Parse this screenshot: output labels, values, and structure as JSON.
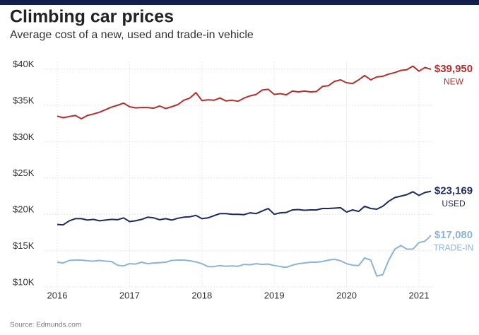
{
  "chart_data": {
    "type": "line",
    "title": "Climbing car prices",
    "subtitle": "Average cost of a new, used and trade-in vehicle",
    "source": "Source: Edmunds.com",
    "x": [
      2016,
      2016.083,
      2016.167,
      2016.25,
      2016.333,
      2016.417,
      2016.5,
      2016.583,
      2016.667,
      2016.75,
      2016.833,
      2016.917,
      2017,
      2017.083,
      2017.167,
      2017.25,
      2017.333,
      2017.417,
      2017.5,
      2017.583,
      2017.667,
      2017.75,
      2017.833,
      2017.917,
      2018,
      2018.083,
      2018.167,
      2018.25,
      2018.333,
      2018.417,
      2018.5,
      2018.583,
      2018.667,
      2018.75,
      2018.833,
      2018.917,
      2019,
      2019.083,
      2019.167,
      2019.25,
      2019.333,
      2019.417,
      2019.5,
      2019.583,
      2019.667,
      2019.75,
      2019.833,
      2019.917,
      2020,
      2020.083,
      2020.167,
      2020.25,
      2020.333,
      2020.417,
      2020.5,
      2020.583,
      2020.667,
      2020.75,
      2020.833,
      2020.917,
      2021,
      2021.083,
      2021.167
    ],
    "series": [
      {
        "name": "NEW",
        "color": "#b22f2f",
        "end_label": "$39,950",
        "values": [
          33500,
          33300,
          33450,
          33600,
          33150,
          33600,
          33800,
          34050,
          34400,
          34750,
          35000,
          35300,
          34800,
          34650,
          34700,
          34700,
          34600,
          34900,
          34550,
          34800,
          35100,
          35700,
          36000,
          36750,
          35650,
          35750,
          35700,
          36000,
          35600,
          35700,
          35550,
          36000,
          36300,
          36500,
          37100,
          37200,
          36500,
          36600,
          36450,
          36950,
          36850,
          36950,
          36850,
          36900,
          37600,
          37700,
          38300,
          38500,
          38100,
          38000,
          38500,
          39100,
          38500,
          38900,
          39000,
          39300,
          39500,
          39800,
          39900,
          40400,
          39700,
          40200,
          39950
        ]
      },
      {
        "name": "USED",
        "color": "#1c2b5a",
        "end_label": "$23,169",
        "values": [
          18600,
          18550,
          19100,
          19400,
          19400,
          19200,
          19300,
          19100,
          19200,
          19300,
          19250,
          19500,
          19000,
          19100,
          19300,
          19600,
          19500,
          19250,
          19400,
          19200,
          19450,
          19600,
          19650,
          19850,
          19400,
          19500,
          19800,
          20100,
          20100,
          20000,
          20000,
          19950,
          20200,
          20100,
          20450,
          20800,
          20000,
          20200,
          20250,
          20600,
          20650,
          20550,
          20600,
          20600,
          20800,
          20800,
          20850,
          20900,
          20300,
          20600,
          20400,
          21100,
          20800,
          20700,
          21100,
          21800,
          22300,
          22500,
          22700,
          23100,
          22600,
          23000,
          23169
        ]
      },
      {
        "name": "TRADE-IN",
        "color": "#8db3d6",
        "end_label": "$17,080",
        "values": [
          13400,
          13300,
          13650,
          13700,
          13700,
          13600,
          13550,
          13650,
          13550,
          13500,
          13000,
          12900,
          13200,
          13150,
          13400,
          13200,
          13300,
          13350,
          13400,
          13650,
          13700,
          13700,
          13600,
          13450,
          13200,
          12800,
          12800,
          12950,
          12850,
          12900,
          12850,
          13100,
          13050,
          13200,
          13100,
          13150,
          12950,
          12800,
          12700,
          13000,
          13200,
          13300,
          13400,
          13400,
          13500,
          13700,
          13800,
          13600,
          13200,
          13000,
          12950,
          14000,
          13700,
          11500,
          11700,
          13700,
          15200,
          15700,
          15200,
          15200,
          16100,
          16300,
          17080
        ]
      }
    ],
    "xlim": [
      2015.8,
      2021.3
    ],
    "xticks": [
      2016,
      2017,
      2018,
      2019,
      2020,
      2021
    ],
    "ylim": [
      10000,
      41000
    ],
    "yticks": [
      {
        "value": 10000,
        "label": "$10K"
      },
      {
        "value": 15000,
        "label": "$15K"
      },
      {
        "value": 20000,
        "label": "$20K"
      },
      {
        "value": 25000,
        "label": "$25K"
      },
      {
        "value": 30000,
        "label": "$30K"
      },
      {
        "value": 35000,
        "label": "$35K"
      },
      {
        "value": 40000,
        "label": "$40K"
      }
    ],
    "grid": true
  }
}
